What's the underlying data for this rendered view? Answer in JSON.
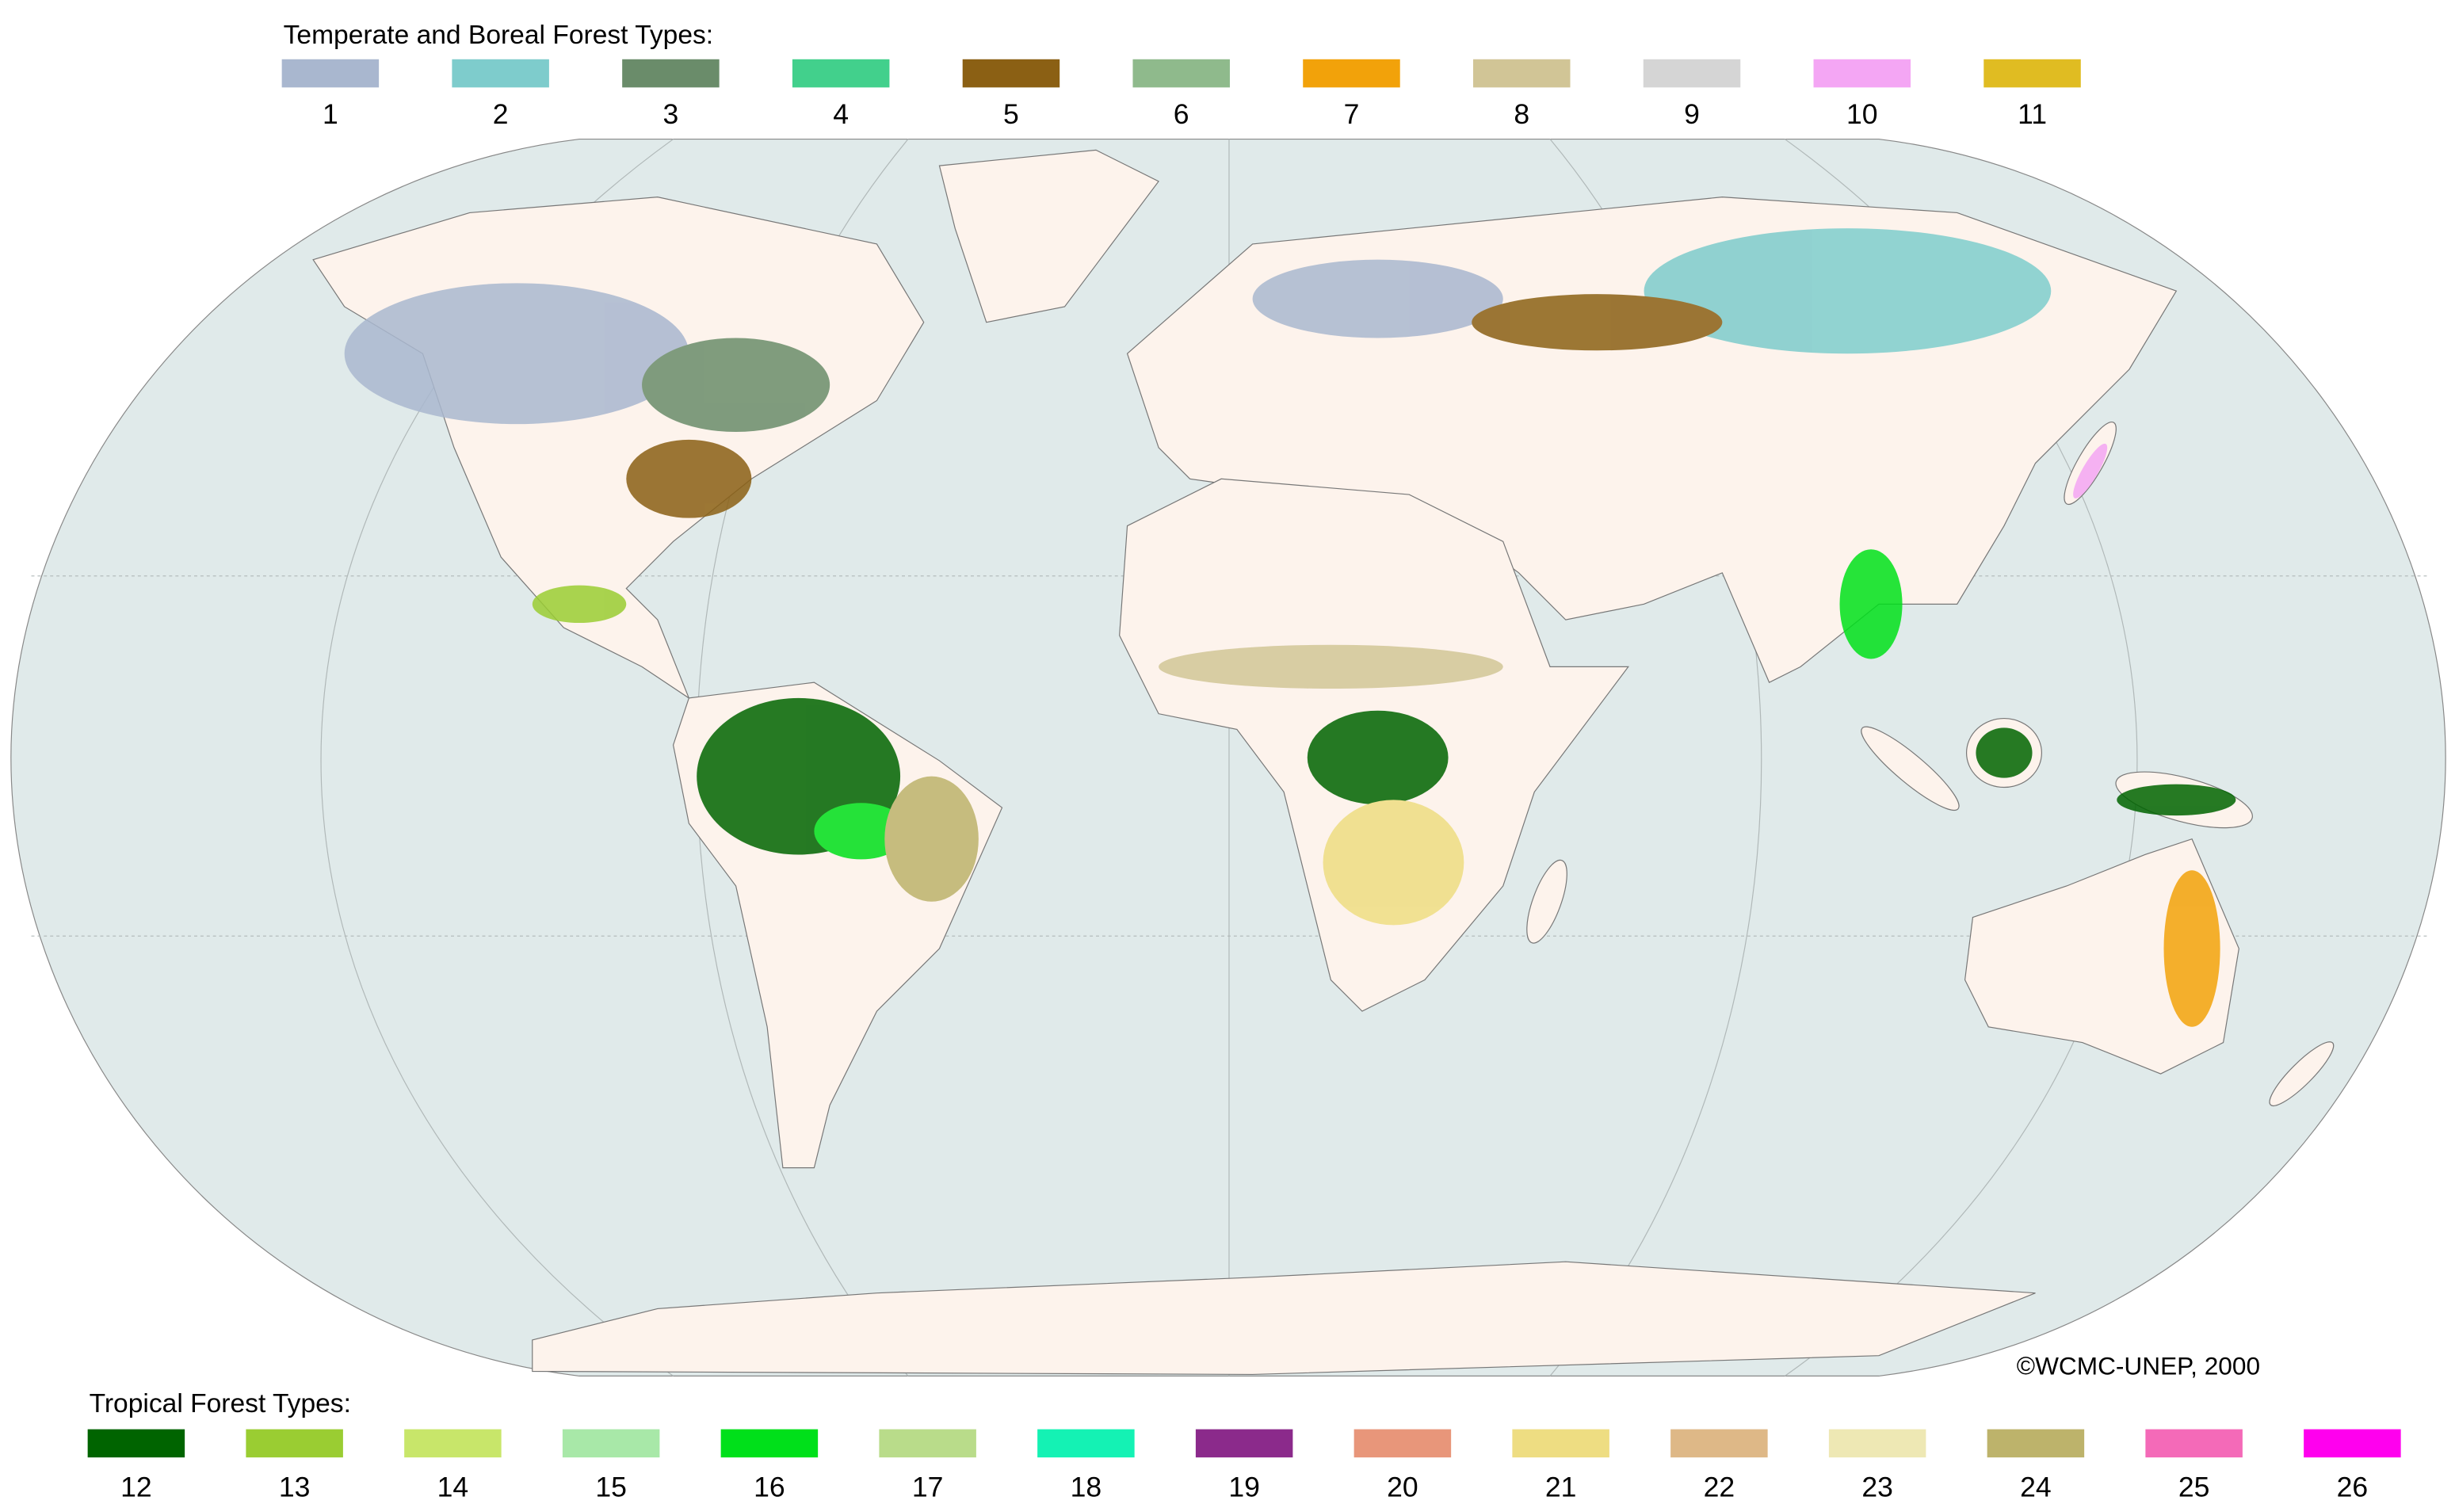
{
  "top_legend": {
    "title": "Temperate and Boreal Forest Types:",
    "items": [
      {
        "label": "1",
        "color": "#a9b7cf"
      },
      {
        "label": "2",
        "color": "#7ecccc"
      },
      {
        "label": "3",
        "color": "#6a8c6a"
      },
      {
        "label": "4",
        "color": "#42d08c"
      },
      {
        "label": "5",
        "color": "#8b6014"
      },
      {
        "label": "6",
        "color": "#8fba8c"
      },
      {
        "label": "7",
        "color": "#f2a20a"
      },
      {
        "label": "8",
        "color": "#d1c596"
      },
      {
        "label": "9",
        "color": "#d5d5d5"
      },
      {
        "label": "10",
        "color": "#f4a6f4"
      },
      {
        "label": "11",
        "color": "#e0bc22"
      }
    ]
  },
  "bottom_legend": {
    "title": "Tropical Forest Types:",
    "items": [
      {
        "label": "12",
        "color": "#006400"
      },
      {
        "label": "13",
        "color": "#9acd32"
      },
      {
        "label": "14",
        "color": "#c8e66a"
      },
      {
        "label": "15",
        "color": "#a8e8a8"
      },
      {
        "label": "16",
        "color": "#00e01a"
      },
      {
        "label": "17",
        "color": "#b9dc8a"
      },
      {
        "label": "18",
        "color": "#14f2b4"
      },
      {
        "label": "19",
        "color": "#8b2a8b"
      },
      {
        "label": "20",
        "color": "#e8967a"
      },
      {
        "label": "21",
        "color": "#eedd82"
      },
      {
        "label": "22",
        "color": "#deb887"
      },
      {
        "label": "23",
        "color": "#eee8b4"
      },
      {
        "label": "24",
        "color": "#bdb36b"
      },
      {
        "label": "25",
        "color": "#f46ab8"
      },
      {
        "label": "26",
        "color": "#ff00ee"
      }
    ]
  },
  "copyright": "©WCMC-UNEP, 2000"
}
